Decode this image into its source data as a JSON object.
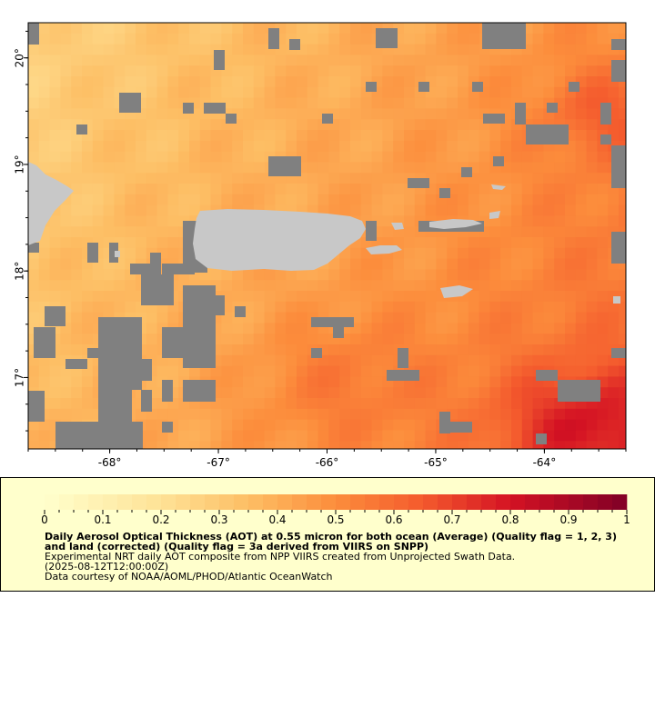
{
  "map": {
    "lon_range": [
      -68.75,
      -63.25
    ],
    "lat_range": [
      16.33,
      20.33
    ],
    "x_ticks": [
      {
        "value": -68,
        "label": "-68°"
      },
      {
        "value": -67,
        "label": "-67°"
      },
      {
        "value": -66,
        "label": "-66°"
      },
      {
        "value": -65,
        "label": "-65°"
      },
      {
        "value": -64,
        "label": "-64°"
      }
    ],
    "y_ticks": [
      {
        "value": 17,
        "label": "17°"
      },
      {
        "value": 18,
        "label": "18°"
      },
      {
        "value": 19,
        "label": "19°"
      },
      {
        "value": 20,
        "label": "20°"
      }
    ],
    "colors": {
      "land": "#c8c8c8",
      "missing": "#808080",
      "border": "#000000"
    }
  },
  "legend": {
    "range": [
      0,
      1
    ],
    "tick_labels": [
      "0",
      "0.1",
      "0.2",
      "0.3",
      "0.4",
      "0.5",
      "0.6",
      "0.7",
      "0.8",
      "0.9",
      "1"
    ],
    "title": "Daily Aerosol Optical Thickness (AOT) at 0.55 micron for both ocean (Average) (Quality flag = 1, 2, 3) and land (corrected) (Quality flag = 3a derived from VIIRS on SNPP)",
    "description": "Experimental NRT daily AOT composite from NPP VIIRS created from Unprojected Swath Data.",
    "timestamp": "(2025-08-12T12:00:00Z)",
    "credit": "Data courtesy of NOAA/AOML/PHOD/Atlantic OceanWatch",
    "colors": {
      "background": "#ffffcc",
      "scale_low": "#ffffcc",
      "scale_mid": "#fd8d3c",
      "scale_high": "#800026"
    }
  }
}
